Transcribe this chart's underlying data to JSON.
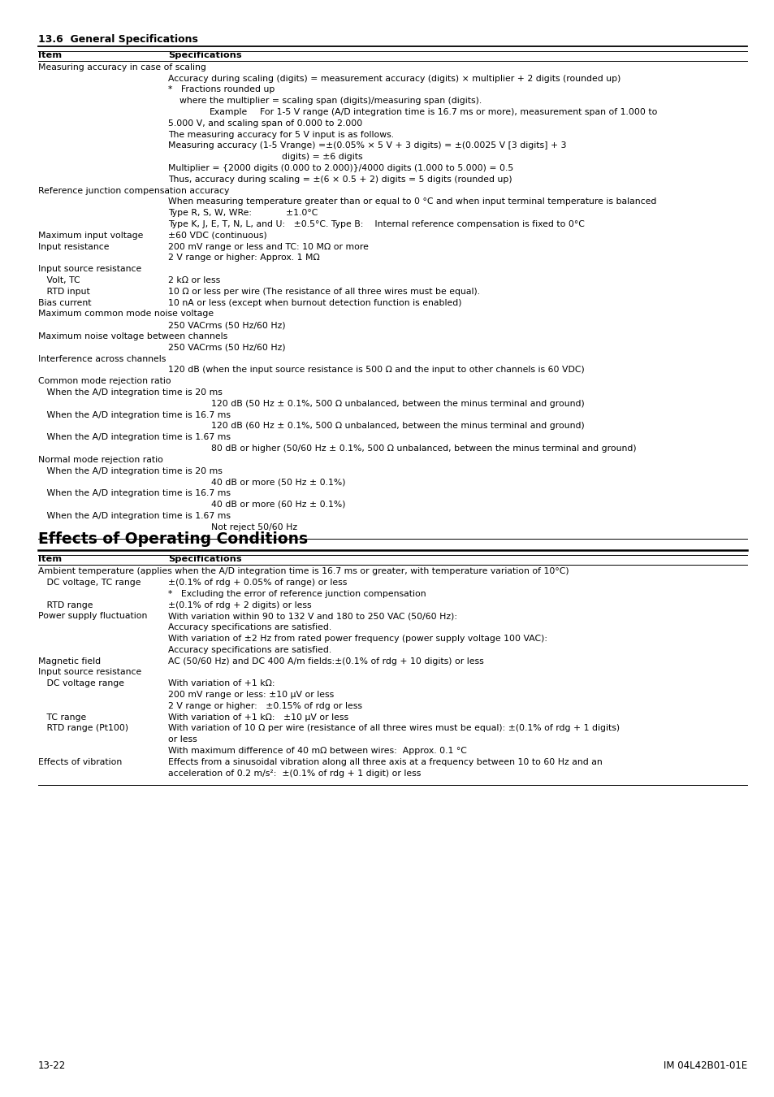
{
  "background_color": "#ffffff",
  "section_title": "13.6  General Specifications",
  "section2_title": "Effects of Operating Conditions",
  "footer_left": "13-22",
  "footer_right": "IM 04L42B01-01E",
  "top_table_rows": [
    {
      "type": "header",
      "c1": "Item",
      "c2": "Specifications"
    },
    {
      "type": "section",
      "c1": "Measuring accuracy in case of scaling",
      "c2": ""
    },
    {
      "type": "cont",
      "c1": "",
      "c2": "Accuracy during scaling (digits) = measurement accuracy (digits) × multiplier + 2 digits (rounded up)"
    },
    {
      "type": "cont",
      "c1": "",
      "c2": "*   Fractions rounded up"
    },
    {
      "type": "cont",
      "c1": "",
      "c2": "    where the multiplier = scaling span (digits)/measuring span (digits)."
    },
    {
      "type": "example",
      "c1": "Example",
      "c2": "For 1-5 V range (A/D integration time is 16.7 ms or more), measurement span of 1.000 to"
    },
    {
      "type": "cont",
      "c1": "",
      "c2": "5.000 V, and scaling span of 0.000 to 2.000"
    },
    {
      "type": "cont",
      "c1": "",
      "c2": "The measuring accuracy for 5 V input is as follows."
    },
    {
      "type": "cont",
      "c1": "",
      "c2": "Measuring accuracy (1-5 Vrange) =±(0.05% × 5 V + 3 digits) = ±(0.0025 V [3 digits] + 3"
    },
    {
      "type": "cont_center",
      "c1": "",
      "c2": "digits) = ±6 digits"
    },
    {
      "type": "cont",
      "c1": "",
      "c2": "Multiplier = {2000 digits (0.000 to 2.000)}/4000 digits (1.000 to 5.000) = 0.5"
    },
    {
      "type": "cont",
      "c1": "",
      "c2": "Thus, accuracy during scaling = ±(6 × 0.5 + 2) digits = 5 digits (rounded up)"
    },
    {
      "type": "section",
      "c1": "Reference junction compensation accuracy",
      "c2": ""
    },
    {
      "type": "cont",
      "c1": "",
      "c2": "When measuring temperature greater than or equal to 0 °C and when input terminal temperature is balanced"
    },
    {
      "type": "cont",
      "c1": "",
      "c2": "Type R, S, W, WRe:            ±1.0°C"
    },
    {
      "type": "cont",
      "c1": "",
      "c2": "Type K, J, E, T, N, L, and U:   ±0.5°C. Type B:    Internal reference compensation is fixed to 0°C"
    },
    {
      "type": "item",
      "c1": "Maximum input voltage",
      "c2": "±60 VDC (continuous)"
    },
    {
      "type": "item",
      "c1": "Input resistance",
      "c2": "200 mV range or less and TC: 10 MΩ or more"
    },
    {
      "type": "cont",
      "c1": "",
      "c2": "2 V range or higher: Approx. 1 MΩ"
    },
    {
      "type": "section",
      "c1": "Input source resistance",
      "c2": ""
    },
    {
      "type": "item",
      "c1": "   Volt, TC",
      "c2": "2 kΩ or less"
    },
    {
      "type": "item",
      "c1": "   RTD input",
      "c2": "10 Ω or less per wire (The resistance of all three wires must be equal)."
    },
    {
      "type": "item",
      "c1": "Bias current",
      "c2": "10 nA or less (except when burnout detection function is enabled)"
    },
    {
      "type": "section",
      "c1": "Maximum common mode noise voltage",
      "c2": ""
    },
    {
      "type": "cont",
      "c1": "",
      "c2": "250 VACrms (50 Hz/60 Hz)"
    },
    {
      "type": "section",
      "c1": "Maximum noise voltage between channels",
      "c2": ""
    },
    {
      "type": "cont",
      "c1": "",
      "c2": "250 VACrms (50 Hz/60 Hz)"
    },
    {
      "type": "section",
      "c1": "Interference across channels",
      "c2": ""
    },
    {
      "type": "cont",
      "c1": "",
      "c2": "120 dB (when the input source resistance is 500 Ω and the input to other channels is 60 VDC)"
    },
    {
      "type": "section",
      "c1": "Common mode rejection ratio",
      "c2": ""
    },
    {
      "type": "sub",
      "c1": "   When the A/D integration time is 20 ms",
      "c2": ""
    },
    {
      "type": "cont_ind",
      "c1": "",
      "c2": "120 dB (50 Hz ± 0.1%, 500 Ω unbalanced, between the minus terminal and ground)"
    },
    {
      "type": "sub",
      "c1": "   When the A/D integration time is 16.7 ms",
      "c2": ""
    },
    {
      "type": "cont_ind",
      "c1": "",
      "c2": "120 dB (60 Hz ± 0.1%, 500 Ω unbalanced, between the minus terminal and ground)"
    },
    {
      "type": "sub",
      "c1": "   When the A/D integration time is 1.67 ms",
      "c2": ""
    },
    {
      "type": "cont_ind",
      "c1": "",
      "c2": "80 dB or higher (50/60 Hz ± 0.1%, 500 Ω unbalanced, between the minus terminal and ground)"
    },
    {
      "type": "section",
      "c1": "Normal mode rejection ratio",
      "c2": ""
    },
    {
      "type": "sub",
      "c1": "   When the A/D integration time is 20 ms",
      "c2": ""
    },
    {
      "type": "cont_ind",
      "c1": "",
      "c2": "40 dB or more (50 Hz ± 0.1%)"
    },
    {
      "type": "sub",
      "c1": "   When the A/D integration time is 16.7 ms",
      "c2": ""
    },
    {
      "type": "cont_ind",
      "c1": "",
      "c2": "40 dB or more (60 Hz ± 0.1%)"
    },
    {
      "type": "sub",
      "c1": "   When the A/D integration time is 1.67 ms",
      "c2": ""
    },
    {
      "type": "cont_ind",
      "c1": "",
      "c2": "Not reject 50/60 Hz"
    }
  ],
  "bottom_table_rows": [
    {
      "type": "header",
      "c1": "Item",
      "c2": "Specifications"
    },
    {
      "type": "fullspan",
      "c1": "",
      "c2": "Ambient temperature (applies when the A/D integration time is 16.7 ms or greater, with temperature variation of 10°C)"
    },
    {
      "type": "item",
      "c1": "   DC voltage, TC range",
      "c2": "±(0.1% of rdg + 0.05% of range) or less"
    },
    {
      "type": "cont",
      "c1": "",
      "c2": "*   Excluding the error of reference junction compensation"
    },
    {
      "type": "item",
      "c1": "   RTD range",
      "c2": "±(0.1% of rdg + 2 digits) or less"
    },
    {
      "type": "item",
      "c1": "Power supply fluctuation",
      "c2": "With variation within 90 to 132 V and 180 to 250 VAC (50/60 Hz):"
    },
    {
      "type": "cont",
      "c1": "",
      "c2": "Accuracy specifications are satisfied."
    },
    {
      "type": "cont",
      "c1": "",
      "c2": "With variation of ±2 Hz from rated power frequency (power supply voltage 100 VAC):"
    },
    {
      "type": "cont",
      "c1": "",
      "c2": "Accuracy specifications are satisfied."
    },
    {
      "type": "item",
      "c1": "Magnetic field",
      "c2": "AC (50/60 Hz) and DC 400 A/m fields:±(0.1% of rdg + 10 digits) or less"
    },
    {
      "type": "section",
      "c1": "Input source resistance",
      "c2": ""
    },
    {
      "type": "item",
      "c1": "   DC voltage range",
      "c2": "With variation of +1 kΩ:"
    },
    {
      "type": "cont",
      "c1": "",
      "c2": "200 mV range or less: ±10 μV or less"
    },
    {
      "type": "cont",
      "c1": "",
      "c2": "2 V range or higher:   ±0.15% of rdg or less"
    },
    {
      "type": "item",
      "c1": "   TC range",
      "c2": "With variation of +1 kΩ:   ±10 μV or less"
    },
    {
      "type": "item",
      "c1": "   RTD range (Pt100)",
      "c2": "With variation of 10 Ω per wire (resistance of all three wires must be equal): ±(0.1% of rdg + 1 digits)"
    },
    {
      "type": "cont",
      "c1": "",
      "c2": "or less"
    },
    {
      "type": "cont",
      "c1": "",
      "c2": "With maximum difference of 40 mΩ between wires:  Approx. 0.1 °C"
    },
    {
      "type": "item",
      "c1": "Effects of vibration",
      "c2": "Effects from a sinusoidal vibration along all three axis at a frequency between 10 to 60 Hz and an"
    },
    {
      "type": "cont",
      "c1": "",
      "c2": "acceleration of 0.2 m/s²:  ±(0.1% of rdg + 1 digit) or less"
    }
  ]
}
